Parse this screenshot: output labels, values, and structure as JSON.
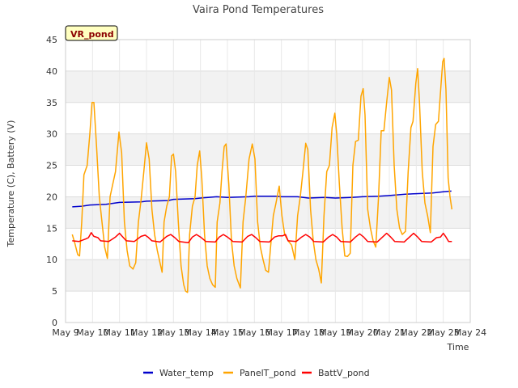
{
  "chart_data": {
    "type": "line",
    "title": "Vaira Pond Temperatures",
    "xlabel": "Time",
    "ylabel": "Temperature (C), Battery (V)",
    "badge": "VR_pond",
    "ylim": [
      0,
      45
    ],
    "yticks": [
      0,
      5,
      10,
      15,
      20,
      25,
      30,
      35,
      40,
      45
    ],
    "xlim": [
      9,
      24
    ],
    "xticks": [
      {
        "v": 9,
        "label": "May 9"
      },
      {
        "v": 10,
        "label": "May 10"
      },
      {
        "v": 11,
        "label": "May 11"
      },
      {
        "v": 12,
        "label": "May 12"
      },
      {
        "v": 13,
        "label": "May 13"
      },
      {
        "v": 14,
        "label": "May 14"
      },
      {
        "v": 15,
        "label": "May 15"
      },
      {
        "v": 16,
        "label": "May 16"
      },
      {
        "v": 17,
        "label": "May 17"
      },
      {
        "v": 18,
        "label": "May 18"
      },
      {
        "v": 19,
        "label": "May 19"
      },
      {
        "v": 20,
        "label": "May 20"
      },
      {
        "v": 21,
        "label": "May 21"
      },
      {
        "v": 22,
        "label": "May 22"
      },
      {
        "v": 23,
        "label": "May 23"
      },
      {
        "v": 24,
        "label": "May 24"
      }
    ],
    "grid": true,
    "legend_position": "bottom",
    "series": [
      {
        "name": "Water_temp",
        "color": "#0000cc",
        "points": [
          [
            9.25,
            18.4
          ],
          [
            9.6,
            18.5
          ],
          [
            9.9,
            18.7
          ],
          [
            10.5,
            18.8
          ],
          [
            11.0,
            19.1
          ],
          [
            11.8,
            19.2
          ],
          [
            12.0,
            19.3
          ],
          [
            12.8,
            19.4
          ],
          [
            13.0,
            19.6
          ],
          [
            13.8,
            19.7
          ],
          [
            14.0,
            19.8
          ],
          [
            14.6,
            20.0
          ],
          [
            15.0,
            19.9
          ],
          [
            15.8,
            20.0
          ],
          [
            16.0,
            20.1
          ],
          [
            16.8,
            20.1
          ],
          [
            17.0,
            20.0
          ],
          [
            17.6,
            20.0
          ],
          [
            18.0,
            19.8
          ],
          [
            18.6,
            19.9
          ],
          [
            19.0,
            19.8
          ],
          [
            19.6,
            19.9
          ],
          [
            20.0,
            20.0
          ],
          [
            20.6,
            20.1
          ],
          [
            21.0,
            20.2
          ],
          [
            21.6,
            20.4
          ],
          [
            22.0,
            20.5
          ],
          [
            22.6,
            20.6
          ],
          [
            23.0,
            20.8
          ],
          [
            23.3,
            20.9
          ]
        ]
      },
      {
        "name": "PanelT_pond",
        "color": "#ffa500",
        "points": [
          [
            9.25,
            14.0
          ],
          [
            9.35,
            12.5
          ],
          [
            9.45,
            10.8
          ],
          [
            9.52,
            10.6
          ],
          [
            9.6,
            16.0
          ],
          [
            9.68,
            23.5
          ],
          [
            9.8,
            25.0
          ],
          [
            9.9,
            30.0
          ],
          [
            9.98,
            35.0
          ],
          [
            10.05,
            35.0
          ],
          [
            10.15,
            28.0
          ],
          [
            10.25,
            20.0
          ],
          [
            10.35,
            16.0
          ],
          [
            10.45,
            12.0
          ],
          [
            10.55,
            10.2
          ],
          [
            10.65,
            20.0
          ],
          [
            10.75,
            22.0
          ],
          [
            10.85,
            24.0
          ],
          [
            10.98,
            30.3
          ],
          [
            11.08,
            27.0
          ],
          [
            11.18,
            16.0
          ],
          [
            11.28,
            11.5
          ],
          [
            11.38,
            9.0
          ],
          [
            11.5,
            8.5
          ],
          [
            11.6,
            9.5
          ],
          [
            11.7,
            16.0
          ],
          [
            11.8,
            19.5
          ],
          [
            11.9,
            24.0
          ],
          [
            12.0,
            28.6
          ],
          [
            12.1,
            26.0
          ],
          [
            12.2,
            18.0
          ],
          [
            12.3,
            14.0
          ],
          [
            12.4,
            11.5
          ],
          [
            12.5,
            9.5
          ],
          [
            12.58,
            8.0
          ],
          [
            12.65,
            16.0
          ],
          [
            12.75,
            18.5
          ],
          [
            12.85,
            20.0
          ],
          [
            12.93,
            26.5
          ],
          [
            13.0,
            26.8
          ],
          [
            13.08,
            24.0
          ],
          [
            13.18,
            16.0
          ],
          [
            13.28,
            9.0
          ],
          [
            13.38,
            6.0
          ],
          [
            13.45,
            5.0
          ],
          [
            13.52,
            4.8
          ],
          [
            13.6,
            14.0
          ],
          [
            13.7,
            18.5
          ],
          [
            13.8,
            20.0
          ],
          [
            13.88,
            25.0
          ],
          [
            13.97,
            27.3
          ],
          [
            14.05,
            23.0
          ],
          [
            14.15,
            14.0
          ],
          [
            14.25,
            9.0
          ],
          [
            14.35,
            7.0
          ],
          [
            14.45,
            6.0
          ],
          [
            14.55,
            5.6
          ],
          [
            14.62,
            16.0
          ],
          [
            14.72,
            19.0
          ],
          [
            14.8,
            24.0
          ],
          [
            14.88,
            28.0
          ],
          [
            14.95,
            28.4
          ],
          [
            15.05,
            22.0
          ],
          [
            15.15,
            13.0
          ],
          [
            15.25,
            9.0
          ],
          [
            15.35,
            7.0
          ],
          [
            15.48,
            5.5
          ],
          [
            15.58,
            16.0
          ],
          [
            15.68,
            20.0
          ],
          [
            15.8,
            26.0
          ],
          [
            15.92,
            28.4
          ],
          [
            16.02,
            26.0
          ],
          [
            16.12,
            16.0
          ],
          [
            16.22,
            12.0
          ],
          [
            16.32,
            10.0
          ],
          [
            16.42,
            8.3
          ],
          [
            16.52,
            8.0
          ],
          [
            16.6,
            12.0
          ],
          [
            16.7,
            17.0
          ],
          [
            16.8,
            19.0
          ],
          [
            16.92,
            21.7
          ],
          [
            17.02,
            17.0
          ],
          [
            17.12,
            14.0
          ],
          [
            17.25,
            13.0
          ],
          [
            17.38,
            12.3
          ],
          [
            17.5,
            10.0
          ],
          [
            17.6,
            17.0
          ],
          [
            17.7,
            20.0
          ],
          [
            17.8,
            24.0
          ],
          [
            17.9,
            28.5
          ],
          [
            17.98,
            27.5
          ],
          [
            18.08,
            18.0
          ],
          [
            18.18,
            13.0
          ],
          [
            18.28,
            10.0
          ],
          [
            18.38,
            8.5
          ],
          [
            18.48,
            6.3
          ],
          [
            18.58,
            17.0
          ],
          [
            18.68,
            24.0
          ],
          [
            18.78,
            25.0
          ],
          [
            18.88,
            31.0
          ],
          [
            18.98,
            33.3
          ],
          [
            19.05,
            30.0
          ],
          [
            19.15,
            22.0
          ],
          [
            19.25,
            15.0
          ],
          [
            19.35,
            10.6
          ],
          [
            19.45,
            10.5
          ],
          [
            19.55,
            11.0
          ],
          [
            19.65,
            25.0
          ],
          [
            19.75,
            28.8
          ],
          [
            19.85,
            29.0
          ],
          [
            19.95,
            36.0
          ],
          [
            20.03,
            37.2
          ],
          [
            20.1,
            33.0
          ],
          [
            20.2,
            18.0
          ],
          [
            20.3,
            15.0
          ],
          [
            20.4,
            13.0
          ],
          [
            20.5,
            12.0
          ],
          [
            20.6,
            20.0
          ],
          [
            20.7,
            30.5
          ],
          [
            20.8,
            30.5
          ],
          [
            20.9,
            35.0
          ],
          [
            21.0,
            39.0
          ],
          [
            21.08,
            37.0
          ],
          [
            21.18,
            25.0
          ],
          [
            21.28,
            18.0
          ],
          [
            21.38,
            15.0
          ],
          [
            21.48,
            14.0
          ],
          [
            21.6,
            14.5
          ],
          [
            21.7,
            24.0
          ],
          [
            21.8,
            31.0
          ],
          [
            21.88,
            32.0
          ],
          [
            21.98,
            38.0
          ],
          [
            22.05,
            40.4
          ],
          [
            22.12,
            35.0
          ],
          [
            22.22,
            24.0
          ],
          [
            22.32,
            19.0
          ],
          [
            22.42,
            17.0
          ],
          [
            22.52,
            14.3
          ],
          [
            22.62,
            28.0
          ],
          [
            22.72,
            31.5
          ],
          [
            22.82,
            32.0
          ],
          [
            22.92,
            38.0
          ],
          [
            22.98,
            41.5
          ],
          [
            23.03,
            42.0
          ],
          [
            23.1,
            37.0
          ],
          [
            23.18,
            23.0
          ],
          [
            23.25,
            20.0
          ],
          [
            23.32,
            18.0
          ]
        ]
      },
      {
        "name": "BattV_pond",
        "color": "#ff0000",
        "points": [
          [
            9.25,
            13.0
          ],
          [
            9.5,
            12.9
          ],
          [
            9.75,
            13.3
          ],
          [
            9.85,
            13.5
          ],
          [
            9.95,
            14.3
          ],
          [
            10.05,
            13.7
          ],
          [
            10.2,
            13.5
          ],
          [
            10.3,
            13.0
          ],
          [
            10.6,
            12.9
          ],
          [
            10.85,
            13.6
          ],
          [
            11.0,
            14.2
          ],
          [
            11.1,
            13.7
          ],
          [
            11.25,
            13.0
          ],
          [
            11.55,
            12.9
          ],
          [
            11.8,
            13.7
          ],
          [
            11.95,
            13.9
          ],
          [
            12.05,
            13.6
          ],
          [
            12.2,
            13.0
          ],
          [
            12.5,
            12.8
          ],
          [
            12.75,
            13.7
          ],
          [
            12.9,
            14.0
          ],
          [
            13.05,
            13.5
          ],
          [
            13.2,
            12.9
          ],
          [
            13.55,
            12.7
          ],
          [
            13.7,
            13.6
          ],
          [
            13.85,
            14.0
          ],
          [
            14.0,
            13.6
          ],
          [
            14.2,
            12.9
          ],
          [
            14.55,
            12.8
          ],
          [
            14.7,
            13.6
          ],
          [
            14.85,
            14.0
          ],
          [
            15.0,
            13.6
          ],
          [
            15.2,
            12.9
          ],
          [
            15.55,
            12.8
          ],
          [
            15.75,
            13.7
          ],
          [
            15.9,
            14.0
          ],
          [
            16.05,
            13.5
          ],
          [
            16.2,
            12.9
          ],
          [
            16.55,
            12.8
          ],
          [
            16.75,
            13.6
          ],
          [
            16.9,
            13.8
          ],
          [
            17.05,
            13.8
          ],
          [
            17.15,
            14.0
          ],
          [
            17.25,
            13.0
          ],
          [
            17.55,
            12.9
          ],
          [
            17.75,
            13.6
          ],
          [
            17.9,
            14.0
          ],
          [
            18.05,
            13.6
          ],
          [
            18.2,
            12.9
          ],
          [
            18.55,
            12.8
          ],
          [
            18.75,
            13.6
          ],
          [
            18.9,
            14.0
          ],
          [
            19.05,
            13.6
          ],
          [
            19.2,
            12.9
          ],
          [
            19.55,
            12.8
          ],
          [
            19.75,
            13.6
          ],
          [
            19.9,
            14.1
          ],
          [
            20.05,
            13.6
          ],
          [
            20.2,
            12.9
          ],
          [
            20.55,
            12.8
          ],
          [
            20.75,
            13.6
          ],
          [
            20.9,
            14.2
          ],
          [
            21.05,
            13.6
          ],
          [
            21.2,
            12.9
          ],
          [
            21.55,
            12.8
          ],
          [
            21.75,
            13.6
          ],
          [
            21.9,
            14.2
          ],
          [
            22.05,
            13.6
          ],
          [
            22.2,
            12.9
          ],
          [
            22.55,
            12.8
          ],
          [
            22.75,
            13.5
          ],
          [
            22.9,
            13.6
          ],
          [
            23.0,
            14.2
          ],
          [
            23.1,
            13.6
          ],
          [
            23.2,
            12.9
          ],
          [
            23.32,
            12.9
          ]
        ]
      }
    ]
  }
}
